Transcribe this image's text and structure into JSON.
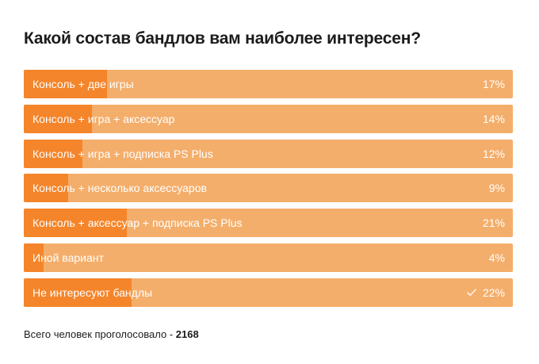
{
  "poll": {
    "title": "Какой состав бандлов вам наиболее интересен?",
    "options": [
      {
        "label": "Консоль + две игры",
        "percent_text": "17%",
        "share": 0.17,
        "selected": false
      },
      {
        "label": "Консоль + игра + аксессуар",
        "percent_text": "14%",
        "share": 0.14,
        "selected": false
      },
      {
        "label": "Консоль + игра + подписка PS Plus",
        "percent_text": "12%",
        "share": 0.12,
        "selected": false
      },
      {
        "label": "Консоль + несколько аксессуаров",
        "percent_text": "9%",
        "share": 0.09,
        "selected": false
      },
      {
        "label": "Консоль + аксессуар + подписка PS Plus",
        "percent_text": "21%",
        "share": 0.21,
        "selected": false
      },
      {
        "label": "Иной вариант",
        "percent_text": "4%",
        "share": 0.04,
        "selected": false
      },
      {
        "label": "Не интересуют бандлы",
        "percent_text": "22%",
        "share": 0.22,
        "selected": true,
        "selected_icon": "check-icon"
      }
    ],
    "footer": {
      "label": "Всего человек проголосовало - ",
      "total": "2168"
    },
    "colors": {
      "bar_background": "#f4ae6b",
      "bar_fill": "#f5852a",
      "text_on_bar": "#ffffff",
      "title": "#1c1c1c"
    }
  }
}
